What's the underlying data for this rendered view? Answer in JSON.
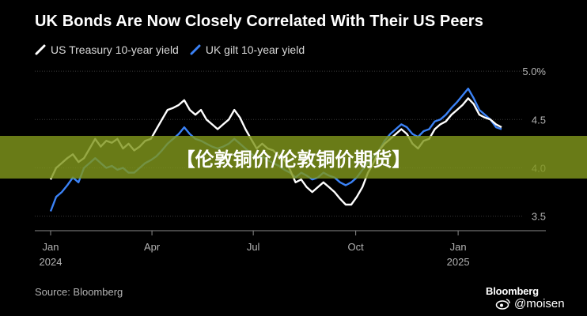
{
  "title": "UK Bonds Are Now Closely Correlated With Their US Peers",
  "source": "Source: Bloomberg",
  "brand": "Bloomberg",
  "watermark": "@moisen",
  "watermark_icon": "weibo-icon",
  "banner": "【伦敦铜价/伦敦铜价期货】",
  "colors": {
    "background": "#000000",
    "us": "#ffffff",
    "uk": "#3b82f6"
  },
  "chart_data": {
    "type": "line",
    "legend_position": "top-left",
    "grid": "horizontal",
    "y_ticks": [
      "3.5",
      "4.0",
      "4.5",
      "5.0%"
    ],
    "y_tick_values": [
      3.5,
      4.0,
      4.5,
      5.0
    ],
    "ylim": [
      3.35,
      5.05
    ],
    "x_ticks": [
      {
        "label": "Jan",
        "sub": "2024",
        "t": 0
      },
      {
        "label": "Apr",
        "sub": "",
        "t": 91
      },
      {
        "label": "Jul",
        "sub": "",
        "t": 182
      },
      {
        "label": "Oct",
        "sub": "",
        "t": 274
      },
      {
        "label": "Jan",
        "sub": "2025",
        "t": 366
      }
    ],
    "xlim": [
      0,
      405
    ],
    "series": [
      {
        "name": "US Treasury 10-year yield",
        "color": "#ffffff",
        "points": [
          [
            0,
            3.88
          ],
          [
            5,
            4.0
          ],
          [
            10,
            4.05
          ],
          [
            15,
            4.1
          ],
          [
            20,
            4.14
          ],
          [
            25,
            4.06
          ],
          [
            30,
            4.1
          ],
          [
            35,
            4.2
          ],
          [
            40,
            4.3
          ],
          [
            45,
            4.22
          ],
          [
            50,
            4.28
          ],
          [
            55,
            4.26
          ],
          [
            60,
            4.3
          ],
          [
            65,
            4.2
          ],
          [
            70,
            4.25
          ],
          [
            75,
            4.18
          ],
          [
            80,
            4.22
          ],
          [
            85,
            4.28
          ],
          [
            90,
            4.3
          ],
          [
            95,
            4.4
          ],
          [
            100,
            4.5
          ],
          [
            105,
            4.6
          ],
          [
            110,
            4.62
          ],
          [
            115,
            4.65
          ],
          [
            120,
            4.7
          ],
          [
            125,
            4.6
          ],
          [
            130,
            4.55
          ],
          [
            135,
            4.6
          ],
          [
            140,
            4.5
          ],
          [
            145,
            4.45
          ],
          [
            150,
            4.4
          ],
          [
            155,
            4.45
          ],
          [
            160,
            4.5
          ],
          [
            165,
            4.6
          ],
          [
            170,
            4.52
          ],
          [
            175,
            4.4
          ],
          [
            180,
            4.3
          ],
          [
            185,
            4.2
          ],
          [
            190,
            4.25
          ],
          [
            195,
            4.2
          ],
          [
            200,
            4.18
          ],
          [
            205,
            4.12
          ],
          [
            210,
            4.08
          ],
          [
            215,
            3.98
          ],
          [
            220,
            3.85
          ],
          [
            225,
            3.88
          ],
          [
            230,
            3.8
          ],
          [
            235,
            3.75
          ],
          [
            240,
            3.8
          ],
          [
            245,
            3.85
          ],
          [
            250,
            3.8
          ],
          [
            255,
            3.75
          ],
          [
            260,
            3.68
          ],
          [
            265,
            3.62
          ],
          [
            270,
            3.62
          ],
          [
            275,
            3.7
          ],
          [
            280,
            3.8
          ],
          [
            285,
            3.95
          ],
          [
            290,
            4.05
          ],
          [
            295,
            4.18
          ],
          [
            300,
            4.25
          ],
          [
            305,
            4.3
          ],
          [
            310,
            4.35
          ],
          [
            315,
            4.4
          ],
          [
            320,
            4.35
          ],
          [
            325,
            4.25
          ],
          [
            330,
            4.2
          ],
          [
            335,
            4.28
          ],
          [
            340,
            4.3
          ],
          [
            345,
            4.4
          ],
          [
            350,
            4.45
          ],
          [
            355,
            4.48
          ],
          [
            360,
            4.55
          ],
          [
            365,
            4.6
          ],
          [
            370,
            4.65
          ],
          [
            375,
            4.72
          ],
          [
            380,
            4.66
          ],
          [
            385,
            4.55
          ],
          [
            390,
            4.52
          ],
          [
            395,
            4.5
          ],
          [
            400,
            4.45
          ],
          [
            405,
            4.42
          ]
        ]
      },
      {
        "name": "UK gilt 10-year yield",
        "color": "#3b82f6",
        "points": [
          [
            0,
            3.55
          ],
          [
            5,
            3.7
          ],
          [
            10,
            3.75
          ],
          [
            15,
            3.82
          ],
          [
            20,
            3.9
          ],
          [
            25,
            3.85
          ],
          [
            30,
            4.0
          ],
          [
            35,
            4.05
          ],
          [
            40,
            4.1
          ],
          [
            45,
            4.05
          ],
          [
            50,
            4.0
          ],
          [
            55,
            4.02
          ],
          [
            60,
            3.98
          ],
          [
            65,
            4.0
          ],
          [
            70,
            3.95
          ],
          [
            75,
            3.95
          ],
          [
            80,
            4.0
          ],
          [
            85,
            4.05
          ],
          [
            90,
            4.08
          ],
          [
            95,
            4.12
          ],
          [
            100,
            4.18
          ],
          [
            105,
            4.25
          ],
          [
            110,
            4.3
          ],
          [
            115,
            4.35
          ],
          [
            120,
            4.42
          ],
          [
            125,
            4.35
          ],
          [
            130,
            4.3
          ],
          [
            135,
            4.28
          ],
          [
            140,
            4.25
          ],
          [
            145,
            4.22
          ],
          [
            150,
            4.2
          ],
          [
            155,
            4.22
          ],
          [
            160,
            4.25
          ],
          [
            165,
            4.3
          ],
          [
            170,
            4.25
          ],
          [
            175,
            4.2
          ],
          [
            180,
            4.15
          ],
          [
            185,
            4.1
          ],
          [
            190,
            4.12
          ],
          [
            195,
            4.08
          ],
          [
            200,
            4.05
          ],
          [
            205,
            4.02
          ],
          [
            210,
            3.98
          ],
          [
            215,
            3.95
          ],
          [
            220,
            3.9
          ],
          [
            225,
            3.95
          ],
          [
            230,
            3.92
          ],
          [
            235,
            3.88
          ],
          [
            240,
            3.9
          ],
          [
            245,
            3.95
          ],
          [
            250,
            3.92
          ],
          [
            255,
            3.9
          ],
          [
            260,
            3.85
          ],
          [
            265,
            3.82
          ],
          [
            270,
            3.85
          ],
          [
            275,
            3.9
          ],
          [
            280,
            3.98
          ],
          [
            285,
            4.05
          ],
          [
            290,
            4.12
          ],
          [
            295,
            4.18
          ],
          [
            300,
            4.28
          ],
          [
            305,
            4.35
          ],
          [
            310,
            4.4
          ],
          [
            315,
            4.45
          ],
          [
            320,
            4.42
          ],
          [
            325,
            4.35
          ],
          [
            330,
            4.32
          ],
          [
            335,
            4.38
          ],
          [
            340,
            4.4
          ],
          [
            345,
            4.48
          ],
          [
            350,
            4.5
          ],
          [
            355,
            4.55
          ],
          [
            360,
            4.62
          ],
          [
            365,
            4.68
          ],
          [
            370,
            4.75
          ],
          [
            375,
            4.82
          ],
          [
            380,
            4.72
          ],
          [
            385,
            4.6
          ],
          [
            390,
            4.55
          ],
          [
            395,
            4.5
          ],
          [
            400,
            4.42
          ],
          [
            405,
            4.4
          ]
        ]
      }
    ]
  }
}
